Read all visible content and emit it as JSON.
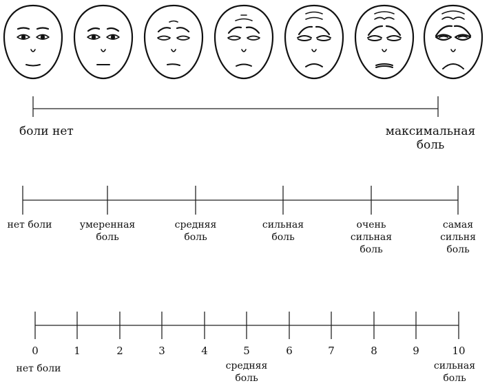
{
  "faces": [
    {
      "id": "face-1",
      "icon": "calm-face-icon"
    },
    {
      "id": "face-2",
      "icon": "slightly-concerned-face-icon"
    },
    {
      "id": "face-3",
      "icon": "uneasy-face-icon"
    },
    {
      "id": "face-4",
      "icon": "worried-face-icon"
    },
    {
      "id": "face-5",
      "icon": "pained-face-icon"
    },
    {
      "id": "face-6",
      "icon": "strong-pain-face-icon"
    },
    {
      "id": "face-7",
      "icon": "extreme-pain-face-icon"
    }
  ],
  "scale1": {
    "left_label": "боли нет",
    "right_label": [
      "максимальная",
      "боль"
    ]
  },
  "scale2": {
    "labels": [
      [
        "нет боли"
      ],
      [
        "умеренная",
        "боль"
      ],
      [
        "средняя",
        "боль"
      ],
      [
        "сильная",
        "боль"
      ],
      [
        "очень",
        "сильная",
        "боль"
      ],
      [
        "самая",
        "сильня",
        "боль"
      ]
    ]
  },
  "scale3": {
    "numbers": [
      "0",
      "1",
      "2",
      "3",
      "4",
      "5",
      "6",
      "7",
      "8",
      "9",
      "10"
    ],
    "label_0": [
      "нет боли"
    ],
    "label_5": [
      "средняя",
      "боль"
    ],
    "label_10": [
      "сильная",
      "боль"
    ]
  }
}
